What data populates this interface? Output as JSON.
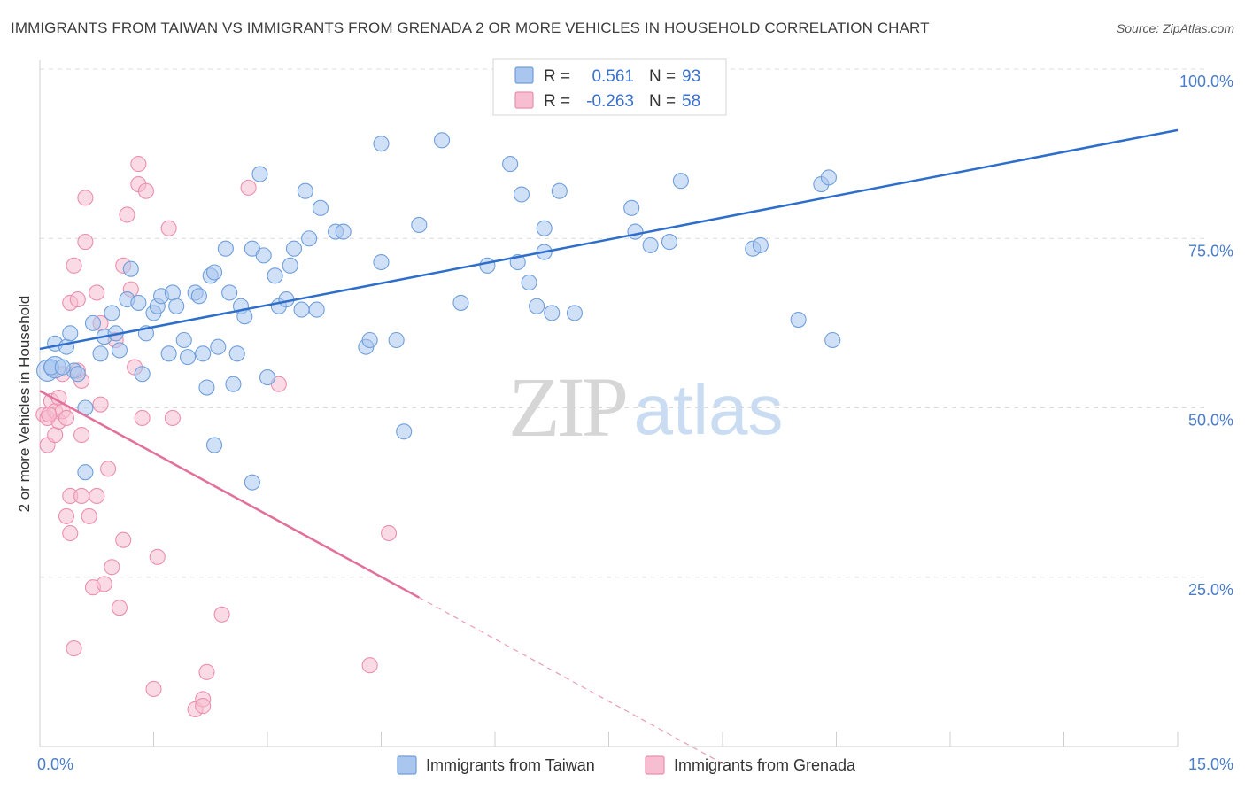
{
  "title": "IMMIGRANTS FROM TAIWAN VS IMMIGRANTS FROM GRENADA 2 OR MORE VEHICLES IN HOUSEHOLD CORRELATION CHART",
  "source": "Source: ZipAtlas.com",
  "watermark": {
    "zip": "ZIP",
    "atlas": "atlas"
  },
  "legend": {
    "taiwan": {
      "r_label": "R =",
      "r_value": "0.561",
      "n_label": "N =",
      "n_value": "93"
    },
    "grenada": {
      "r_label": "R =",
      "r_value": "-0.263",
      "n_label": "N =",
      "n_value": "58"
    }
  },
  "bottom_legend": {
    "taiwan": "Immigrants from Taiwan",
    "grenada": "Immigrants from Grenada"
  },
  "colors": {
    "taiwan_fill": "#a9c6ef",
    "taiwan_stroke": "#6f9fdc",
    "taiwan_line": "#2e6ecb",
    "grenada_fill": "#f6bed0",
    "grenada_stroke": "#ec8fae",
    "grenada_line": "#e2709a",
    "grid": "#dcdcdc",
    "tick_text": "#4a7cc9"
  },
  "chart_data": {
    "type": "scatter",
    "ylabel": "2 or more Vehicles in Household",
    "xlim": [
      0,
      15
    ],
    "ylim": [
      0,
      100
    ],
    "x_tick_labels": [
      "0.0%",
      "15.0%"
    ],
    "y_ticks": [
      25,
      50,
      75,
      100
    ],
    "y_tick_labels": [
      "25.0%",
      "50.0%",
      "75.0%",
      "100.0%"
    ],
    "grid": true,
    "series": [
      {
        "name": "Immigrants from Taiwan",
        "trend": {
          "x": [
            0.0,
            15.0
          ],
          "y": [
            58.7,
            91.0
          ]
        },
        "points": [
          [
            0.1,
            55.5
          ],
          [
            0.2,
            56.0
          ],
          [
            0.2,
            59.5
          ],
          [
            0.35,
            59.0
          ],
          [
            0.4,
            61.0
          ],
          [
            0.45,
            55.5
          ],
          [
            0.5,
            55.0
          ],
          [
            0.6,
            50.0
          ],
          [
            0.6,
            40.5
          ],
          [
            0.7,
            62.5
          ],
          [
            0.8,
            58.0
          ],
          [
            0.85,
            60.5
          ],
          [
            0.95,
            64.0
          ],
          [
            1.0,
            61.0
          ],
          [
            1.15,
            66.0
          ],
          [
            1.2,
            70.5
          ],
          [
            1.3,
            65.5
          ],
          [
            1.35,
            55.0
          ],
          [
            1.4,
            61.0
          ],
          [
            1.5,
            64.0
          ],
          [
            1.55,
            65.0
          ],
          [
            1.6,
            66.5
          ],
          [
            1.7,
            58.0
          ],
          [
            1.75,
            67.0
          ],
          [
            1.8,
            65.0
          ],
          [
            1.9,
            60.0
          ],
          [
            1.95,
            57.5
          ],
          [
            2.05,
            67.0
          ],
          [
            2.1,
            66.5
          ],
          [
            2.15,
            58.0
          ],
          [
            2.2,
            53.0
          ],
          [
            2.25,
            69.5
          ],
          [
            2.3,
            70.0
          ],
          [
            2.3,
            44.5
          ],
          [
            2.35,
            59.0
          ],
          [
            2.45,
            73.5
          ],
          [
            2.5,
            67.0
          ],
          [
            2.55,
            53.5
          ],
          [
            2.6,
            58.0
          ],
          [
            2.65,
            65.0
          ],
          [
            2.7,
            63.5
          ],
          [
            2.8,
            39.0
          ],
          [
            2.8,
            73.5
          ],
          [
            2.9,
            84.5
          ],
          [
            2.95,
            72.5
          ],
          [
            3.0,
            54.5
          ],
          [
            3.1,
            69.5
          ],
          [
            3.15,
            65.0
          ],
          [
            3.25,
            66.0
          ],
          [
            3.3,
            71.0
          ],
          [
            3.35,
            73.5
          ],
          [
            3.45,
            64.5
          ],
          [
            3.5,
            82.0
          ],
          [
            3.55,
            75.0
          ],
          [
            3.65,
            64.5
          ],
          [
            3.7,
            79.5
          ],
          [
            3.9,
            76.0
          ],
          [
            4.0,
            76.0
          ],
          [
            4.3,
            59.0
          ],
          [
            4.35,
            60.0
          ],
          [
            4.5,
            71.5
          ],
          [
            4.5,
            89.0
          ],
          [
            4.7,
            60.0
          ],
          [
            4.8,
            46.5
          ],
          [
            5.0,
            77.0
          ],
          [
            5.3,
            89.5
          ],
          [
            5.55,
            65.5
          ],
          [
            5.9,
            71.0
          ],
          [
            6.2,
            86.0
          ],
          [
            6.3,
            71.5
          ],
          [
            6.35,
            81.5
          ],
          [
            6.45,
            68.5
          ],
          [
            6.55,
            65.0
          ],
          [
            6.65,
            76.5
          ],
          [
            6.65,
            73.0
          ],
          [
            6.75,
            64.0
          ],
          [
            6.85,
            82.0
          ],
          [
            7.05,
            64.0
          ],
          [
            7.8,
            79.5
          ],
          [
            7.85,
            76.0
          ],
          [
            8.05,
            74.0
          ],
          [
            8.3,
            74.5
          ],
          [
            8.45,
            83.5
          ],
          [
            9.4,
            73.5
          ],
          [
            9.5,
            74.0
          ],
          [
            10.0,
            63.0
          ],
          [
            10.3,
            83.0
          ],
          [
            10.4,
            84.0
          ],
          [
            10.45,
            60.0
          ],
          [
            6.2,
            100.0
          ],
          [
            0.15,
            56.0
          ],
          [
            0.3,
            56.0
          ],
          [
            1.05,
            58.5
          ]
        ]
      },
      {
        "name": "Immigrants from Grenada",
        "trend": {
          "x": [
            0.0,
            5.0
          ],
          "y": [
            52.5,
            22.0
          ]
        },
        "trend_dashed": {
          "x": [
            5.0,
            9.0
          ],
          "y": [
            22.0,
            -2.5
          ]
        },
        "points": [
          [
            0.05,
            49.0
          ],
          [
            0.1,
            44.5
          ],
          [
            0.1,
            48.5
          ],
          [
            0.15,
            51.0
          ],
          [
            0.2,
            49.5
          ],
          [
            0.2,
            46.0
          ],
          [
            0.25,
            51.5
          ],
          [
            0.25,
            48.0
          ],
          [
            0.3,
            49.5
          ],
          [
            0.3,
            55.0
          ],
          [
            0.35,
            34.0
          ],
          [
            0.35,
            48.5
          ],
          [
            0.4,
            31.5
          ],
          [
            0.4,
            37.0
          ],
          [
            0.4,
            65.5
          ],
          [
            0.45,
            71.0
          ],
          [
            0.45,
            14.5
          ],
          [
            0.5,
            66.0
          ],
          [
            0.55,
            54.0
          ],
          [
            0.55,
            46.0
          ],
          [
            0.55,
            37.0
          ],
          [
            0.6,
            81.0
          ],
          [
            0.6,
            74.5
          ],
          [
            0.65,
            34.0
          ],
          [
            0.7,
            23.5
          ],
          [
            0.75,
            67.0
          ],
          [
            0.75,
            37.0
          ],
          [
            0.8,
            62.5
          ],
          [
            0.8,
            50.5
          ],
          [
            0.85,
            24.0
          ],
          [
            0.9,
            41.0
          ],
          [
            0.95,
            26.5
          ],
          [
            1.0,
            60.0
          ],
          [
            1.05,
            20.5
          ],
          [
            1.1,
            71.0
          ],
          [
            1.1,
            30.5
          ],
          [
            1.15,
            78.5
          ],
          [
            1.2,
            67.5
          ],
          [
            1.25,
            56.0
          ],
          [
            1.3,
            86.0
          ],
          [
            1.3,
            83.0
          ],
          [
            1.35,
            48.5
          ],
          [
            1.4,
            82.0
          ],
          [
            1.5,
            8.5
          ],
          [
            1.55,
            28.0
          ],
          [
            1.7,
            76.5
          ],
          [
            1.75,
            48.5
          ],
          [
            2.05,
            5.5
          ],
          [
            2.15,
            7.0
          ],
          [
            2.15,
            6.0
          ],
          [
            2.2,
            11.0
          ],
          [
            2.4,
            19.5
          ],
          [
            2.75,
            82.5
          ],
          [
            3.15,
            53.5
          ],
          [
            4.35,
            12.0
          ],
          [
            4.6,
            31.5
          ],
          [
            0.12,
            49.0
          ],
          [
            0.5,
            55.5
          ]
        ]
      }
    ]
  }
}
